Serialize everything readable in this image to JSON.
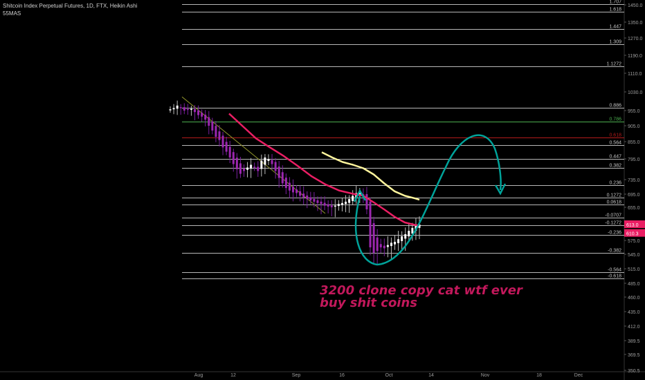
{
  "header": {
    "title": "Shitcoin Index Perpetual Futures, 1D, FTX, Heikin Ashi",
    "indicator": "55MAS"
  },
  "annotation": {
    "line1": "3200 clone copy cat wtf ever",
    "line2": "buy shit coins"
  },
  "colors": {
    "background": "#000000",
    "grid": "#b8b8b8",
    "level_green": "#4caf50",
    "level_red": "#b71c1c",
    "candle_bear": "#9c27b0",
    "candle_bull": "#ffffff",
    "ma_fast": "#e91e63",
    "ma_slow": "#fff59d",
    "trend_line": "#8b8f2a",
    "projection": "#00a39a",
    "axis_text": "#9e9e9e",
    "price_badge": "#e91e63"
  },
  "chart_data": {
    "type": "candlestick",
    "x_ticks": [
      "Aug",
      "12",
      "Sep",
      "16",
      "Oct",
      "14",
      "Nov",
      "18",
      "Dec"
    ],
    "y_ticks": [
      1450.0,
      1350.0,
      1270.0,
      1190.0,
      1110.0,
      1030.0,
      955.0,
      905.0,
      855.0,
      795.0,
      735.0,
      695.0,
      655.0,
      613.0,
      575.0,
      545.0,
      515.0,
      485.0,
      460.0,
      435.0,
      412.0,
      389.5,
      369.5,
      350.5
    ],
    "y_tick_labels": [
      "1450.0",
      "1350.0",
      "1270.0",
      "1190.0",
      "1110.0",
      "1030.0",
      "955.0",
      "905.0",
      "855.0",
      "795.0",
      "735.0",
      "695.0",
      "655.0",
      "613.0",
      "575.0",
      "545.0",
      "515.0",
      "485.0",
      "460.0",
      "435.0",
      "412.0",
      "389.5",
      "369.5",
      "350.5"
    ],
    "ylim": [
      345,
      1470
    ],
    "price_labels": [
      {
        "label": "613.0",
        "value": 613.0
      },
      {
        "label": "610.3",
        "value": 610.3
      }
    ],
    "fib_levels": [
      {
        "label": "1.707",
        "price": 1455,
        "color": "grid"
      },
      {
        "label": "1.618",
        "price": 1410,
        "color": "grid"
      },
      {
        "label": "1.447",
        "price": 1315,
        "color": "grid"
      },
      {
        "label": "1.309",
        "price": 1240,
        "color": "grid"
      },
      {
        "label": "1.1272",
        "price": 1140,
        "color": "grid"
      },
      {
        "label": "0.886",
        "price": 965,
        "color": "grid"
      },
      {
        "label": "0.786",
        "price": 918,
        "color": "level_green"
      },
      {
        "label": "0.618",
        "price": 868,
        "color": "level_red"
      },
      {
        "label": "0.564",
        "price": 843,
        "color": "grid"
      },
      {
        "label": "0.447",
        "price": 795,
        "color": "grid"
      },
      {
        "label": "0.382",
        "price": 770,
        "color": "grid"
      },
      {
        "label": "0.236",
        "price": 720,
        "color": "grid"
      },
      {
        "label": "0.1272",
        "price": 685,
        "color": "grid"
      },
      {
        "label": "0.0618",
        "price": 663,
        "color": "grid"
      },
      {
        "label": "-0.0707",
        "price": 630,
        "color": "grid"
      },
      {
        "label": "-0.1272",
        "price": 612,
        "color": "grid"
      },
      {
        "label": "-0.236",
        "price": 588,
        "color": "grid"
      },
      {
        "label": "-0.382",
        "price": 548,
        "color": "grid"
      },
      {
        "label": "-0.564",
        "price": 508,
        "color": "grid"
      },
      {
        "label": "-0.618",
        "price": 495,
        "color": "grid"
      }
    ],
    "candles_summary": {
      "start": "Jul 30",
      "start_price": 960,
      "low": 545,
      "low_date": "Sep 28",
      "last": 613.0
    },
    "series": [
      {
        "values": "fast moving average (pink)"
      },
      {
        "values": "slow moving average (yellow)"
      }
    ]
  }
}
